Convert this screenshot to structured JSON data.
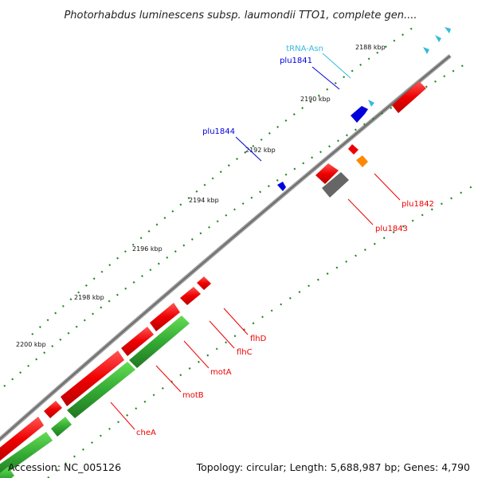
{
  "title": "Photorhabdus luminescens subsp. laumondii TTO1, complete gen....",
  "footer": {
    "accession": "Accession: NC_005126",
    "topology": "Topology: circular; Length: 5,688,987 bp; Genes: 4,790"
  },
  "ticks": [
    "2188 kbp",
    "2190 kbp",
    "2192 kbp",
    "2194 kbp",
    "2196 kbp",
    "2198 kbp",
    "2200 kbp"
  ],
  "gene_labels": [
    {
      "name": "trna-asn-label",
      "text": "tRNA-Asn"
    },
    {
      "name": "plu1841-label",
      "text": "plu1841"
    },
    {
      "name": "plu1844-label",
      "text": "plu1844"
    },
    {
      "name": "plu1842-label",
      "text": "plu1842"
    },
    {
      "name": "plu1843-label",
      "text": "plu1843"
    },
    {
      "name": "flhd-label",
      "text": "flhD"
    },
    {
      "name": "flhc-label",
      "text": "flhC"
    },
    {
      "name": "mota-label",
      "text": "motA"
    },
    {
      "name": "motb-label",
      "text": "motB"
    },
    {
      "name": "chea-label",
      "text": "cheA"
    }
  ],
  "colors": {
    "forward_cds": "#ff0000",
    "reverse_cds": "#33aa33",
    "trna": "#33bbdd",
    "blue_cds": "#0000dd",
    "orange_cds": "#ff8800",
    "gray_cds": "#666666",
    "backbone": "#888888",
    "gc_ticks": "#227722"
  }
}
